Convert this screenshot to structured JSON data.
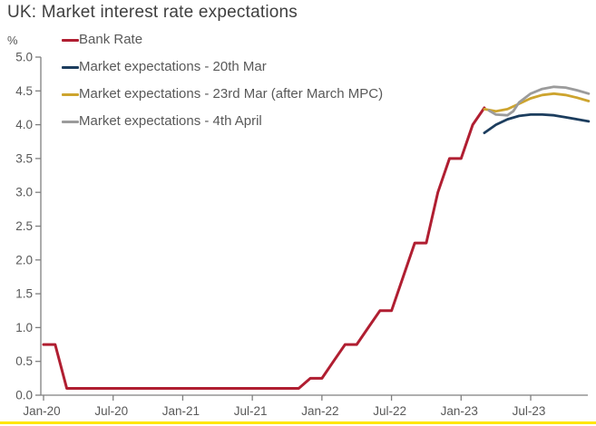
{
  "title": "UK: Market interest rate expectations",
  "y_unit_label": "%",
  "colors": {
    "title_text": "#3f3f3f",
    "axis_line": "#7f7f7f",
    "tick_text": "#595959",
    "legend_text": "#595959",
    "bottom_accent": "#ffe600"
  },
  "chart_data": {
    "type": "line",
    "title": "UK: Market interest rate expectations",
    "xlabel": "",
    "ylabel": "%",
    "ylim": [
      0.0,
      5.0
    ],
    "ytick_step": 0.5,
    "ytick_labels": [
      "0.0",
      "0.5",
      "1.0",
      "1.5",
      "2.0",
      "2.5",
      "3.0",
      "3.5",
      "4.0",
      "4.5",
      "5.0"
    ],
    "grid": false,
    "legend_position": "top-left",
    "x_axis": {
      "unit": "months since Jan-20",
      "range_months": [
        0,
        47
      ],
      "tick_months": [
        0,
        6,
        12,
        18,
        24,
        30,
        36,
        42
      ],
      "tick_labels": [
        "Jan-20",
        "Jul-20",
        "Jan-21",
        "Jul-21",
        "Jan-22",
        "Jul-22",
        "Jan-23",
        "Jul-23"
      ]
    },
    "series": [
      {
        "name": "Bank Rate",
        "color": "#b01e31",
        "width": 3,
        "x": [
          0,
          1,
          2,
          22,
          23,
          24,
          25,
          26,
          27,
          28,
          29,
          30,
          31,
          32,
          33,
          34,
          35,
          36,
          37,
          38
        ],
        "y": [
          0.75,
          0.75,
          0.1,
          0.1,
          0.25,
          0.25,
          0.5,
          0.75,
          0.75,
          1.0,
          1.25,
          1.25,
          1.75,
          2.25,
          2.25,
          3.0,
          3.5,
          3.5,
          4.0,
          4.25
        ]
      },
      {
        "name": "Market expectations - 20th Mar",
        "color": "#1c3d5e",
        "width": 2.8,
        "x": [
          38,
          39,
          40,
          41,
          42,
          43,
          44,
          45,
          46,
          47
        ],
        "y": [
          3.88,
          4.0,
          4.08,
          4.13,
          4.15,
          4.15,
          4.14,
          4.11,
          4.08,
          4.05
        ]
      },
      {
        "name": "Market expectations - 23rd Mar (after March MPC)",
        "color": "#cda42e",
        "width": 2.8,
        "x": [
          38,
          39,
          40,
          41,
          42,
          43,
          44,
          45,
          46,
          47
        ],
        "y": [
          4.23,
          4.2,
          4.23,
          4.31,
          4.39,
          4.44,
          4.46,
          4.44,
          4.4,
          4.35
        ]
      },
      {
        "name": "Market expectations - 4th April",
        "color": "#9b9b9b",
        "width": 2.8,
        "x": [
          38.4,
          39,
          40,
          40.5,
          41,
          42,
          43,
          44,
          45,
          46,
          47
        ],
        "y": [
          4.21,
          4.15,
          4.14,
          4.2,
          4.33,
          4.46,
          4.53,
          4.56,
          4.55,
          4.51,
          4.46
        ]
      }
    ]
  }
}
